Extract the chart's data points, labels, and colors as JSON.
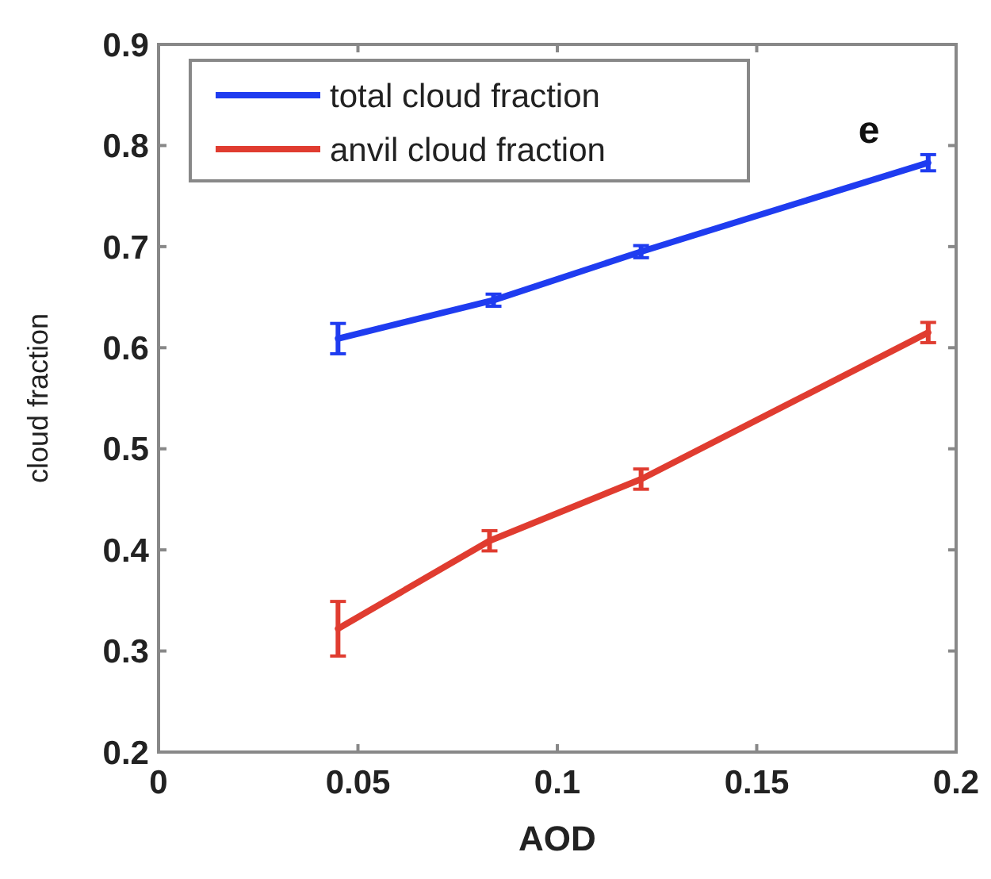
{
  "chart_data": {
    "type": "line",
    "xlabel": "AOD",
    "ylabel": "cloud fraction",
    "annotations": [
      "e"
    ],
    "xlim": [
      0,
      0.2
    ],
    "xticks": [
      0,
      0.05,
      0.1,
      0.15,
      0.2
    ],
    "ylim": [
      0.2,
      0.9
    ],
    "yticks": [
      0.2,
      0.3,
      0.4,
      0.5,
      0.6,
      0.7,
      0.8,
      0.9
    ],
    "grid": false,
    "legend": "top left",
    "marker": "none",
    "line_style": "solid",
    "series": [
      {
        "name": "total cloud fraction",
        "color": "#1f3cf0",
        "x": [
          0.045,
          0.084,
          0.121,
          0.193
        ],
        "values": [
          0.609,
          0.647,
          0.695,
          0.783
        ],
        "errors": [
          0.015,
          0.006,
          0.006,
          0.008
        ]
      },
      {
        "name": "anvil cloud fraction",
        "color": "#e03c30",
        "x": [
          0.045,
          0.083,
          0.121,
          0.193
        ],
        "values": [
          0.322,
          0.409,
          0.47,
          0.615
        ],
        "errors": [
          0.027,
          0.01,
          0.01,
          0.01
        ]
      }
    ]
  }
}
